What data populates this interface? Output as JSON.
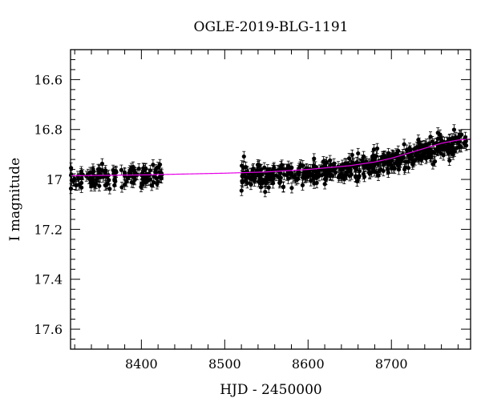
{
  "chart_data": {
    "type": "scatter",
    "title": "OGLE-2019-BLG-1191",
    "xlabel": "HJD - 2450000",
    "ylabel": "I magnitude",
    "xlim": [
      8315,
      8795
    ],
    "ylim": [
      17.68,
      16.48
    ],
    "y_inverted": true,
    "xticks": [
      8400,
      8500,
      8600,
      8700
    ],
    "xtick_labels": [
      "8400",
      "8500",
      "8600",
      "8700"
    ],
    "yticks": [
      16.6,
      16.8,
      17,
      17.2,
      17.4,
      17.6
    ],
    "ytick_labels": [
      "16.6",
      "16.8",
      "17",
      "17.2",
      "17.4",
      "17.6"
    ],
    "grid": false,
    "colors": {
      "data": "#000000",
      "model": "#e600e6",
      "frame": "#000000"
    },
    "series": [
      {
        "style": "points-with-errorbars",
        "observing_seasons": [
          {
            "x_range": [
              8315,
              8425
            ],
            "mean_mag": 16.99,
            "scatter": 0.022,
            "err": 0.02,
            "n_points": 140
          },
          {
            "x_range": [
              8520,
              8790
            ],
            "mean_mag_trend": "from 16.99 brightening to 16.84",
            "scatter": 0.022,
            "err": 0.02,
            "n_points": 520
          }
        ]
      },
      {
        "style": "line",
        "x": [
          8315,
          8400,
          8500,
          8550,
          8600,
          8650,
          8680,
          8700,
          8720,
          8740,
          8760,
          8780,
          8795
        ],
        "y": [
          16.985,
          16.982,
          16.975,
          16.97,
          16.96,
          16.945,
          16.93,
          16.915,
          16.895,
          16.875,
          16.855,
          16.842,
          16.838
        ]
      }
    ]
  }
}
